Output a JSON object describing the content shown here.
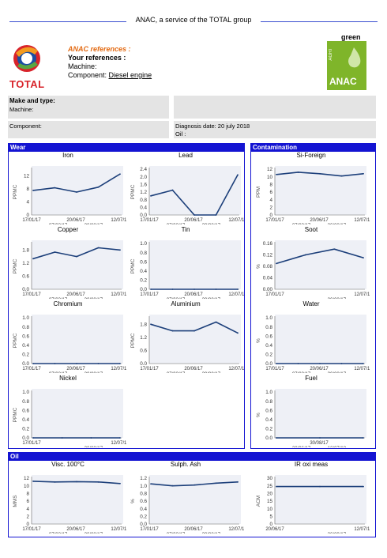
{
  "header": {
    "title": "ANAC, a service of the TOTAL group"
  },
  "refs": {
    "anac": "ANAC references :",
    "yours": "Your references :",
    "machine": "Machine:",
    "component_label": "Component:",
    "component_value": "Diesel engine"
  },
  "brand": {
    "total": "TOTAL",
    "green": "green",
    "badge_agri": "AGRI",
    "badge_anac": "ANAC"
  },
  "info": {
    "make_type": "Make and type:",
    "machine": "Machine:",
    "component": "Component:",
    "diagnosis": "Diagnosis date: 20 july 2018",
    "oil": "Oil :"
  },
  "sections": {
    "wear": "Wear",
    "contamination": "Contamination",
    "oil": "Oil"
  },
  "chart_data": [
    {
      "id": "iron",
      "type": "line",
      "title": "Iron",
      "ylabel": "PPMC",
      "yticks": [
        "0",
        "4",
        "8",
        "12"
      ],
      "ylim": [
        0,
        14
      ],
      "xtop": [
        "17/01/17",
        "20/06/17",
        "12/07/18"
      ],
      "xbottom": [
        "07/03/17",
        "30/08/17"
      ],
      "values": [
        7.5,
        8.3,
        7,
        8.5,
        12.5
      ]
    },
    {
      "id": "lead",
      "type": "line",
      "title": "Lead",
      "ylabel": "PPMC",
      "yticks": [
        "0.0",
        "0.4",
        "0.8",
        "1.2",
        "1.6",
        "2.0",
        "2.4"
      ],
      "ylim": [
        0,
        2.4
      ],
      "xtop": [
        "17/01/17",
        "20/06/17",
        "12/07/18"
      ],
      "xbottom": [
        "07/03/17",
        "30/08/17"
      ],
      "values": [
        1.0,
        1.3,
        0,
        0,
        2.1
      ]
    },
    {
      "id": "si",
      "type": "line",
      "title": "Si-Foreign",
      "ylabel": "PPM",
      "yticks": [
        "0",
        "2",
        "4",
        "6",
        "8",
        "10",
        "12"
      ],
      "ylim": [
        0,
        12
      ],
      "xtop": [
        "17/01/17",
        "20/06/17",
        "12/07/18"
      ],
      "xbottom": [
        "07/03/17",
        "30/08/17"
      ],
      "values": [
        10.6,
        11.2,
        10.8,
        10.2,
        10.8
      ]
    },
    {
      "id": "copper",
      "type": "line",
      "title": "Copper",
      "ylabel": "PPMC",
      "yticks": [
        "0.0",
        "0.6",
        "1.2",
        "1.8"
      ],
      "ylim": [
        0,
        2.1
      ],
      "xtop": [
        "17/01/17",
        "20/06/17",
        "12/07/18"
      ],
      "xbottom": [
        "07/03/17",
        "30/08/17"
      ],
      "values": [
        1.4,
        1.7,
        1.5,
        1.9,
        1.8
      ]
    },
    {
      "id": "tin",
      "type": "line",
      "title": "Tin",
      "ylabel": "PPMC",
      "yticks": [
        "0.0",
        "0.2",
        "0.4",
        "0.6",
        "0.8",
        "1.0"
      ],
      "ylim": [
        0,
        1.0
      ],
      "xtop": [
        "17/01/17",
        "20/06/17",
        "12/07/18"
      ],
      "xbottom": [
        "07/03/17",
        "30/08/17"
      ],
      "values": [
        0,
        0,
        0,
        0,
        0
      ]
    },
    {
      "id": "soot",
      "type": "line",
      "title": "Soot",
      "ylabel": "%",
      "yticks": [
        "0.00",
        "0.04",
        "0.08",
        "0.12",
        "0.16"
      ],
      "ylim": [
        0,
        0.16
      ],
      "xtop": [
        "17/01/17",
        "12/07/18"
      ],
      "xbottom": [
        "30/08/17"
      ],
      "values": [
        0.09,
        0.12,
        0.14,
        0.11
      ]
    },
    {
      "id": "chromium",
      "type": "line",
      "title": "Chromium",
      "ylabel": "PPMC",
      "yticks": [
        "0.0",
        "0.2",
        "0.4",
        "0.6",
        "0.8",
        "1.0"
      ],
      "ylim": [
        0,
        1.0
      ],
      "xtop": [
        "17/01/17",
        "20/06/17",
        "12/07/18"
      ],
      "xbottom": [
        "07/03/17",
        "30/08/17"
      ],
      "values": [
        0,
        0,
        0,
        0,
        0
      ]
    },
    {
      "id": "aluminium",
      "type": "line",
      "title": "Aluminium",
      "ylabel": "PPMC",
      "yticks": [
        "0.0",
        "0.6",
        "1.2",
        "1.8"
      ],
      "ylim": [
        0,
        2.1
      ],
      "xtop": [
        "17/01/17",
        "20/06/17",
        "12/07/18"
      ],
      "xbottom": [
        "07/03/17",
        "30/08/17"
      ],
      "values": [
        1.8,
        1.5,
        1.5,
        1.9,
        1.4
      ]
    },
    {
      "id": "water",
      "type": "line",
      "title": "Water",
      "ylabel": "%",
      "yticks": [
        "0.0",
        "0.2",
        "0.4",
        "0.6",
        "0.8",
        "1.0"
      ],
      "ylim": [
        0,
        1.0
      ],
      "xtop": [
        "17/01/17",
        "20/06/17",
        "12/07/18"
      ],
      "xbottom": [
        "07/03/17",
        "30/08/17"
      ],
      "values": [
        0,
        0,
        0,
        0,
        0
      ]
    },
    {
      "id": "nickel",
      "type": "line",
      "title": "Nickel",
      "ylabel": "PPMC",
      "yticks": [
        "0.0",
        "0.2",
        "0.4",
        "0.6",
        "0.8",
        "1.0"
      ],
      "ylim": [
        0,
        1.0
      ],
      "xtop": [
        "17/01/17",
        "12/07/18"
      ],
      "xbottom": [
        "30/08/17"
      ],
      "values": [
        0,
        0,
        0,
        0
      ]
    },
    {
      "id": "fuel",
      "type": "line",
      "title": "Fuel",
      "ylabel": "%",
      "yticks": [
        "0.0",
        "0.2",
        "0.4",
        "0.6",
        "0.8",
        "1.0"
      ],
      "ylim": [
        0,
        1.0
      ],
      "xtop": [
        "30/08/17"
      ],
      "xbottom": [
        "20/06/17",
        "12/07/18"
      ],
      "values": [
        0,
        0,
        0
      ]
    },
    {
      "id": "visc",
      "type": "line",
      "title": "Visc. 100°C",
      "ylabel": "MMS",
      "yticks": [
        "0",
        "2",
        "4",
        "6",
        "8",
        "10",
        "12"
      ],
      "ylim": [
        0,
        12
      ],
      "xtop": [
        "17/01/17",
        "20/06/17",
        "12/07/18"
      ],
      "xbottom": [
        "07/03/17",
        "30/08/17"
      ],
      "values": [
        11.2,
        11,
        11.1,
        11,
        10.6
      ]
    },
    {
      "id": "sulph",
      "type": "line",
      "title": "Sulph. Ash",
      "ylabel": "%",
      "yticks": [
        "0.0",
        "0.2",
        "0.4",
        "0.6",
        "0.8",
        "1.0",
        "1.2"
      ],
      "ylim": [
        0,
        1.2
      ],
      "xtop": [
        "17/01/17",
        "20/06/17",
        "12/07/18"
      ],
      "xbottom": [
        "07/03/17",
        "30/08/17"
      ],
      "values": [
        1.05,
        1.0,
        1.02,
        1.07,
        1.1
      ]
    },
    {
      "id": "irox",
      "type": "line",
      "title": "IR oxi meas",
      "ylabel": "ACM",
      "yticks": [
        "0",
        "5",
        "10",
        "15",
        "20",
        "25",
        "30"
      ],
      "ylim": [
        0,
        30
      ],
      "xtop": [
        "20/06/17",
        "12/07/18"
      ],
      "xbottom": [
        "30/09/17"
      ],
      "values": [
        24.5,
        24.5,
        24.5
      ]
    }
  ]
}
